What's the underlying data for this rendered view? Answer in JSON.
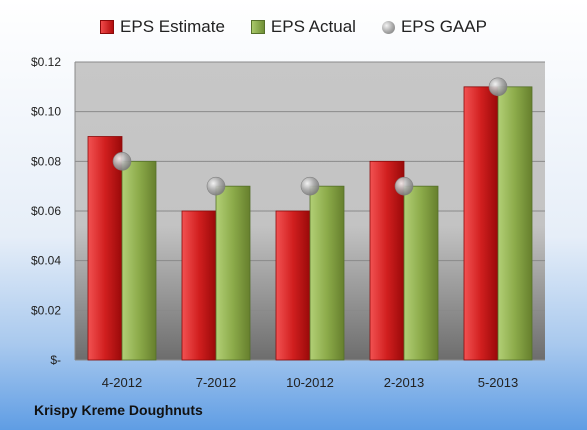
{
  "chart_data": {
    "type": "bar",
    "categories": [
      "4-2012",
      "7-2012",
      "10-2012",
      "2-2013",
      "5-2013"
    ],
    "series": [
      {
        "name": "EPS Estimate",
        "values": [
          0.09,
          0.06,
          0.06,
          0.08,
          0.11
        ],
        "color": "#cc1c1c"
      },
      {
        "name": "EPS Actual",
        "values": [
          0.08,
          0.07,
          0.07,
          0.07,
          0.11
        ],
        "color": "#8caf4c"
      },
      {
        "name": "EPS GAAP",
        "values": [
          0.08,
          0.07,
          0.07,
          0.07,
          0.11
        ],
        "marker": "circle",
        "color": "#b4b4b4"
      }
    ],
    "ylim": [
      0,
      0.12
    ],
    "yticks": [
      0,
      0.02,
      0.04,
      0.06,
      0.08,
      0.1,
      0.12
    ],
    "ytick_labels": [
      "$-",
      "$0.02",
      "$0.04",
      "$0.06",
      "$0.08",
      "$0.10",
      "$0.12"
    ],
    "grid": true,
    "legend_position": "top"
  },
  "footer": {
    "company": "Krispy Kreme Doughnuts"
  },
  "legend": {
    "estimate": "EPS Estimate",
    "actual": "EPS Actual",
    "gaap": "EPS GAAP"
  }
}
